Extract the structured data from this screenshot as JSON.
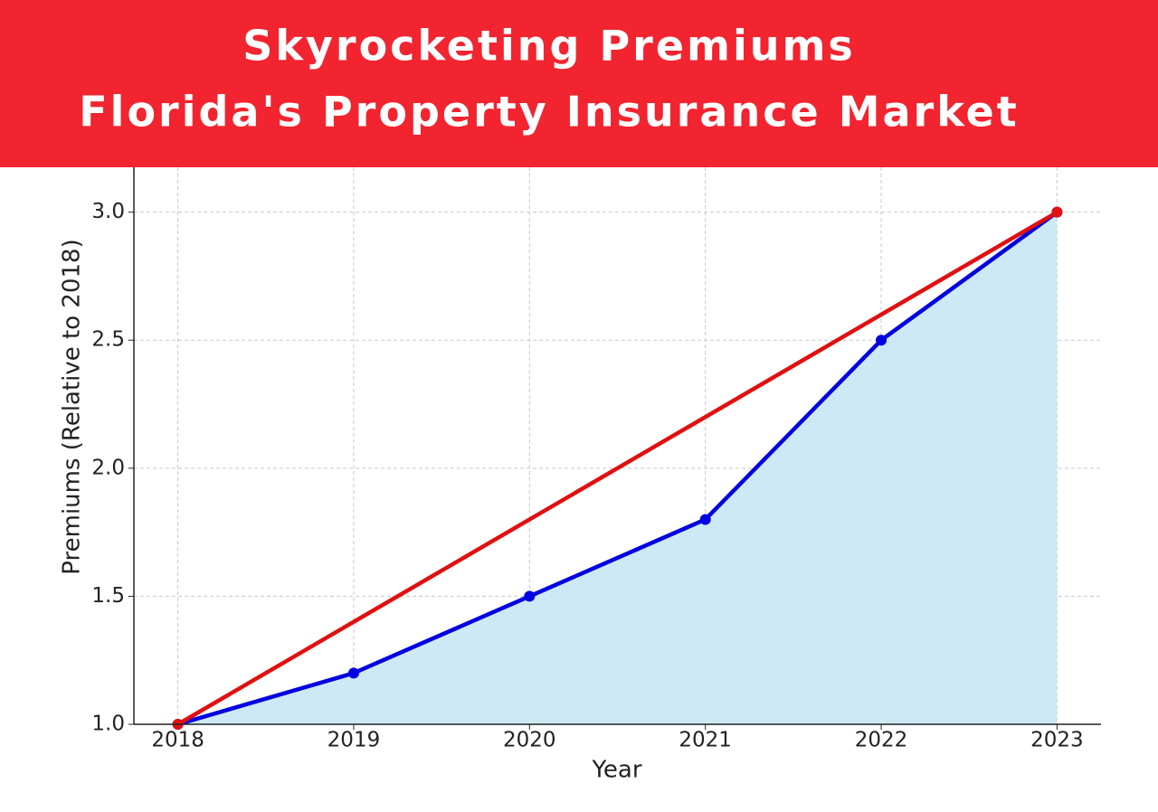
{
  "chart_data": {
    "type": "line",
    "title": "Skyrocketing Premiums",
    "subtitle": "Florida's Property Insurance Market",
    "xlabel": "Year",
    "ylabel": "Premiums (Relative to 2018)",
    "x": [
      2018,
      2019,
      2020,
      2021,
      2022,
      2023
    ],
    "series": [
      {
        "color": "#0000e0",
        "fill": "#cde9f5",
        "values": [
          1.0,
          1.2,
          1.5,
          1.8,
          2.5,
          3.0
        ]
      },
      {
        "color": "#e01010",
        "x": [
          2018,
          2023
        ],
        "values": [
          1.0,
          3.0
        ]
      }
    ],
    "xlim": [
      2017.75,
      2023.25
    ],
    "ylim": [
      1.0,
      3.2
    ],
    "xticks": [
      2018,
      2019,
      2020,
      2021,
      2022,
      2023
    ],
    "yticks": [
      {
        "value": 1.0,
        "label": "1.0"
      },
      1.5,
      {
        "value": 2.0,
        "label": "2.0"
      },
      2.5,
      {
        "value": 3.0,
        "label": "3.0"
      }
    ],
    "grid": true,
    "banner_color": "#f22430"
  }
}
